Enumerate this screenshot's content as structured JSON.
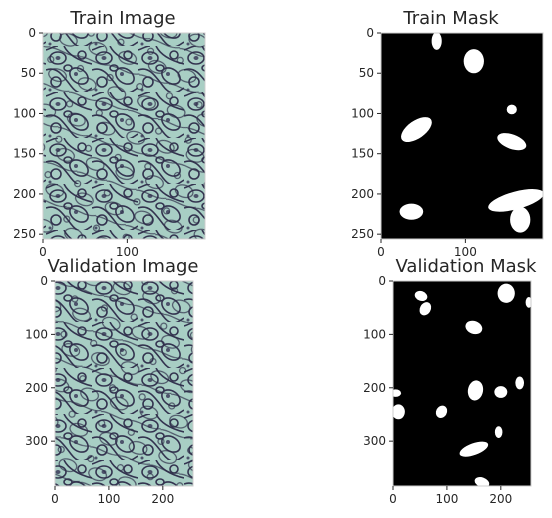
{
  "panels": [
    {
      "id": "train-image",
      "title": "Train Image",
      "kind": "micrograph",
      "image_size": [
        192,
        256
      ],
      "xticks": [
        0,
        100
      ],
      "yticks": [
        0,
        50,
        100,
        150,
        200,
        250
      ]
    },
    {
      "id": "train-mask",
      "title": "Train Mask",
      "kind": "mask",
      "image_size": [
        192,
        256
      ],
      "xticks": [
        0,
        100
      ],
      "yticks": [
        0,
        50,
        100,
        150,
        200,
        250
      ],
      "blobs": [
        {
          "cx": 66,
          "cy": 10,
          "rx": 6,
          "ry": 11,
          "rot": 0
        },
        {
          "cx": 110,
          "cy": 35,
          "rx": 12,
          "ry": 15,
          "rot": 0
        },
        {
          "cx": 155,
          "cy": 95,
          "rx": 6,
          "ry": 6,
          "rot": 0
        },
        {
          "cx": 42,
          "cy": 120,
          "rx": 21,
          "ry": 11,
          "rot": -35
        },
        {
          "cx": 155,
          "cy": 135,
          "rx": 18,
          "ry": 9,
          "rot": 20
        },
        {
          "cx": 36,
          "cy": 222,
          "rx": 14,
          "ry": 10,
          "rot": 0
        },
        {
          "cx": 160,
          "cy": 208,
          "rx": 34,
          "ry": 11,
          "rot": -15
        },
        {
          "cx": 165,
          "cy": 232,
          "rx": 12,
          "ry": 16,
          "rot": 0
        }
      ]
    },
    {
      "id": "validation-image",
      "title": "Validation Image",
      "kind": "micrograph",
      "image_size": [
        256,
        384
      ],
      "xticks": [
        0,
        100,
        200
      ],
      "yticks": [
        0,
        100,
        200,
        300
      ]
    },
    {
      "id": "validation-mask",
      "title": "Validation Mask",
      "kind": "mask",
      "image_size": [
        256,
        384
      ],
      "xticks": [
        0,
        100,
        200
      ],
      "yticks": [
        0,
        100,
        200,
        300
      ],
      "blobs": [
        {
          "cx": 52,
          "cy": 28,
          "rx": 12,
          "ry": 9,
          "rot": 20
        },
        {
          "cx": 60,
          "cy": 52,
          "rx": 10,
          "ry": 13,
          "rot": 30
        },
        {
          "cx": 210,
          "cy": 23,
          "rx": 16,
          "ry": 18,
          "rot": 0
        },
        {
          "cx": 252,
          "cy": 40,
          "rx": 6,
          "ry": 10,
          "rot": 0
        },
        {
          "cx": 150,
          "cy": 87,
          "rx": 16,
          "ry": 12,
          "rot": 20
        },
        {
          "cx": 153,
          "cy": 205,
          "rx": 14,
          "ry": 19,
          "rot": 10
        },
        {
          "cx": 200,
          "cy": 208,
          "rx": 12,
          "ry": 11,
          "rot": 0
        },
        {
          "cx": 235,
          "cy": 191,
          "rx": 8,
          "ry": 12,
          "rot": 0
        },
        {
          "cx": 5,
          "cy": 210,
          "rx": 10,
          "ry": 7,
          "rot": 0
        },
        {
          "cx": 10,
          "cy": 245,
          "rx": 12,
          "ry": 14,
          "rot": 0
        },
        {
          "cx": 90,
          "cy": 245,
          "rx": 10,
          "ry": 12,
          "rot": 30
        },
        {
          "cx": 196,
          "cy": 283,
          "rx": 7,
          "ry": 11,
          "rot": 0
        },
        {
          "cx": 150,
          "cy": 315,
          "rx": 28,
          "ry": 11,
          "rot": -20
        },
        {
          "cx": 165,
          "cy": 377,
          "rx": 14,
          "ry": 9,
          "rot": 20
        }
      ]
    }
  ],
  "colors": {
    "background": "#ffffff",
    "text": "#262626",
    "spine": "#cccccc",
    "micrograph_light": "#a8cec4",
    "micrograph_dark": "#30304f",
    "mask_bg": "#000000",
    "mask_fg": "#ffffff"
  }
}
